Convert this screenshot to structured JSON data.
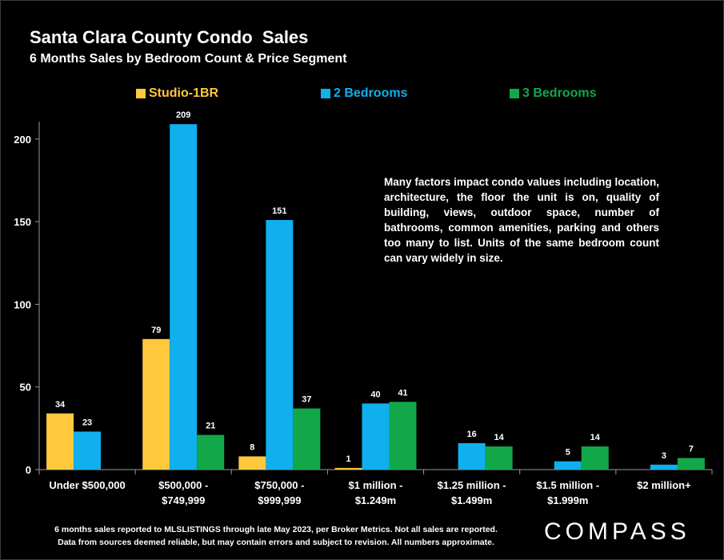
{
  "title": "Santa Clara County Condo  Sales",
  "subtitle": "6 Months Sales by Bedroom Count & Price Segment",
  "note": "Many factors impact condo values including location, architecture, the floor the unit is on, quality of building, views, outdoor space, number of bathrooms, common amenities, parking and others too many to list. Units of the same bedroom count can vary widely in size.",
  "footer": {
    "line1": "6 months sales reported to MLSLISTINGS through late May 2023, per Broker Metrics. Not all sales are reported.",
    "line2": "Data from sources deemed reliable, but may contain errors and subject to revision. All numbers approximate."
  },
  "logo": "COMPASS",
  "chart_data": {
    "type": "bar",
    "categories": [
      [
        "Under $500,000"
      ],
      [
        "$500,000 -",
        "$749,999"
      ],
      [
        "$750,000 -",
        "$999,999"
      ],
      [
        "$1 million -",
        "$1.249m"
      ],
      [
        "$1.25 million -",
        "$1.499m"
      ],
      [
        "$1.5 million -",
        "$1.999m"
      ],
      [
        "$2 million+"
      ]
    ],
    "series": [
      {
        "name": "Studio-1BR",
        "color": "#FFC83D",
        "values": [
          34,
          79,
          8,
          1,
          null,
          null,
          null
        ]
      },
      {
        "name": "2 Bedrooms",
        "color": "#10B0EE",
        "values": [
          23,
          209,
          151,
          40,
          16,
          5,
          3
        ]
      },
      {
        "name": "3 Bedrooms",
        "color": "#12A84A",
        "values": [
          null,
          21,
          37,
          41,
          14,
          14,
          7
        ]
      }
    ],
    "yticks": [
      0,
      50,
      100,
      150,
      200
    ],
    "ylim": [
      0,
      220
    ],
    "grid": false,
    "legend": "top"
  }
}
